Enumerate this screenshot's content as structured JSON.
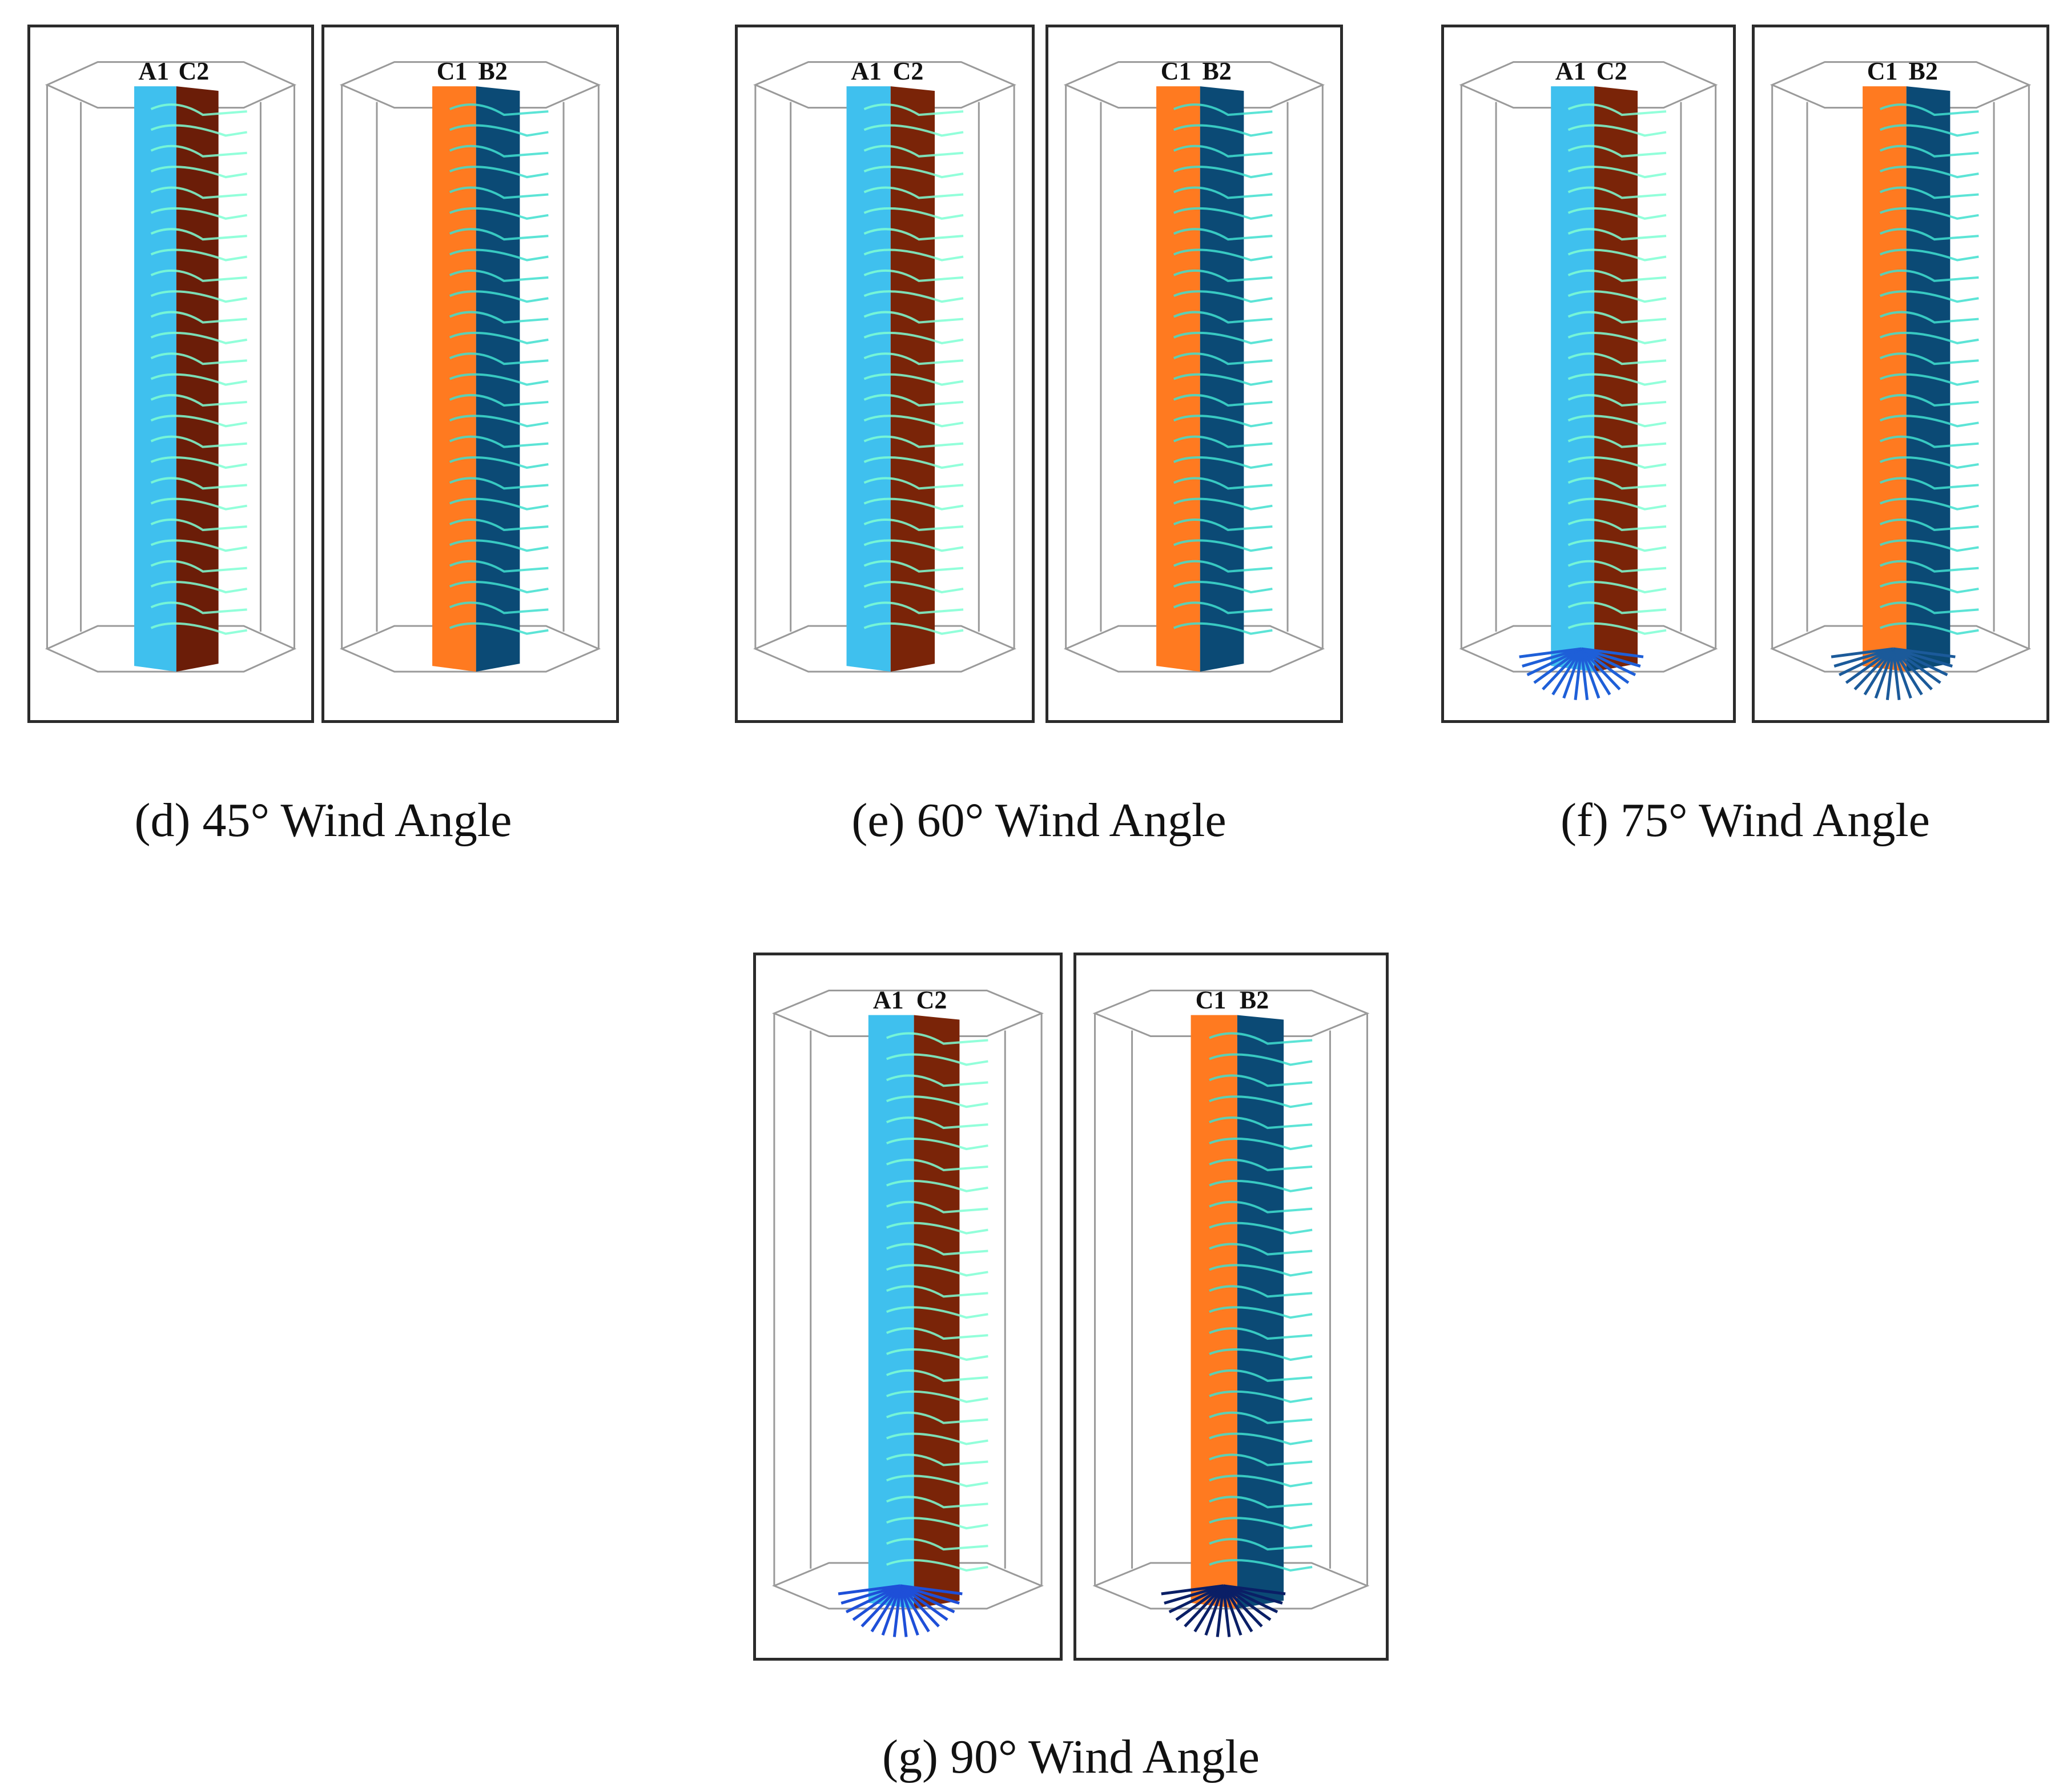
{
  "figure": {
    "captions": {
      "d": "(d) 45° Wind Angle",
      "e": "(e) 60° Wind Angle",
      "f": "(f) 75° Wind Angle",
      "g": "(g) 90° Wind Angle"
    },
    "panels": [
      {
        "id": "d-left",
        "labels": [
          "A1",
          "C2"
        ],
        "faces": [
          "#3fc0ee",
          "#6b1d08"
        ],
        "streak": "#7fffd4",
        "vortex": ""
      },
      {
        "id": "d-right",
        "labels": [
          "C1",
          "B2"
        ],
        "faces": [
          "#ff7a20",
          "#0b4a75"
        ],
        "streak": "#40e0d0",
        "vortex": ""
      },
      {
        "id": "e-left",
        "labels": [
          "A1",
          "C2"
        ],
        "faces": [
          "#3fc0ee",
          "#7a2408"
        ],
        "streak": "#7fffd4",
        "vortex": ""
      },
      {
        "id": "e-right",
        "labels": [
          "C1",
          "B2"
        ],
        "faces": [
          "#ff7a20",
          "#0b4a75"
        ],
        "streak": "#40e0d0",
        "vortex": ""
      },
      {
        "id": "f-left",
        "labels": [
          "A1",
          "C2"
        ],
        "faces": [
          "#3fc0ee",
          "#7a2408"
        ],
        "streak": "#7fffd4",
        "vortex": "#1e5fd8"
      },
      {
        "id": "f-right",
        "labels": [
          "C1",
          "B2"
        ],
        "faces": [
          "#ff7a20",
          "#0b4a75"
        ],
        "streak": "#40e0d0",
        "vortex": "#1b5a9a"
      },
      {
        "id": "g-left",
        "labels": [
          "A1",
          "C2"
        ],
        "faces": [
          "#3fc0ee",
          "#7a2408"
        ],
        "streak": "#7fffd4",
        "vortex": "#1e4fd8"
      },
      {
        "id": "g-right",
        "labels": [
          "C1",
          "B2"
        ],
        "faces": [
          "#ff7a20",
          "#0b4a75"
        ],
        "streak": "#40e0d0",
        "vortex": "#0a1f66"
      }
    ]
  }
}
